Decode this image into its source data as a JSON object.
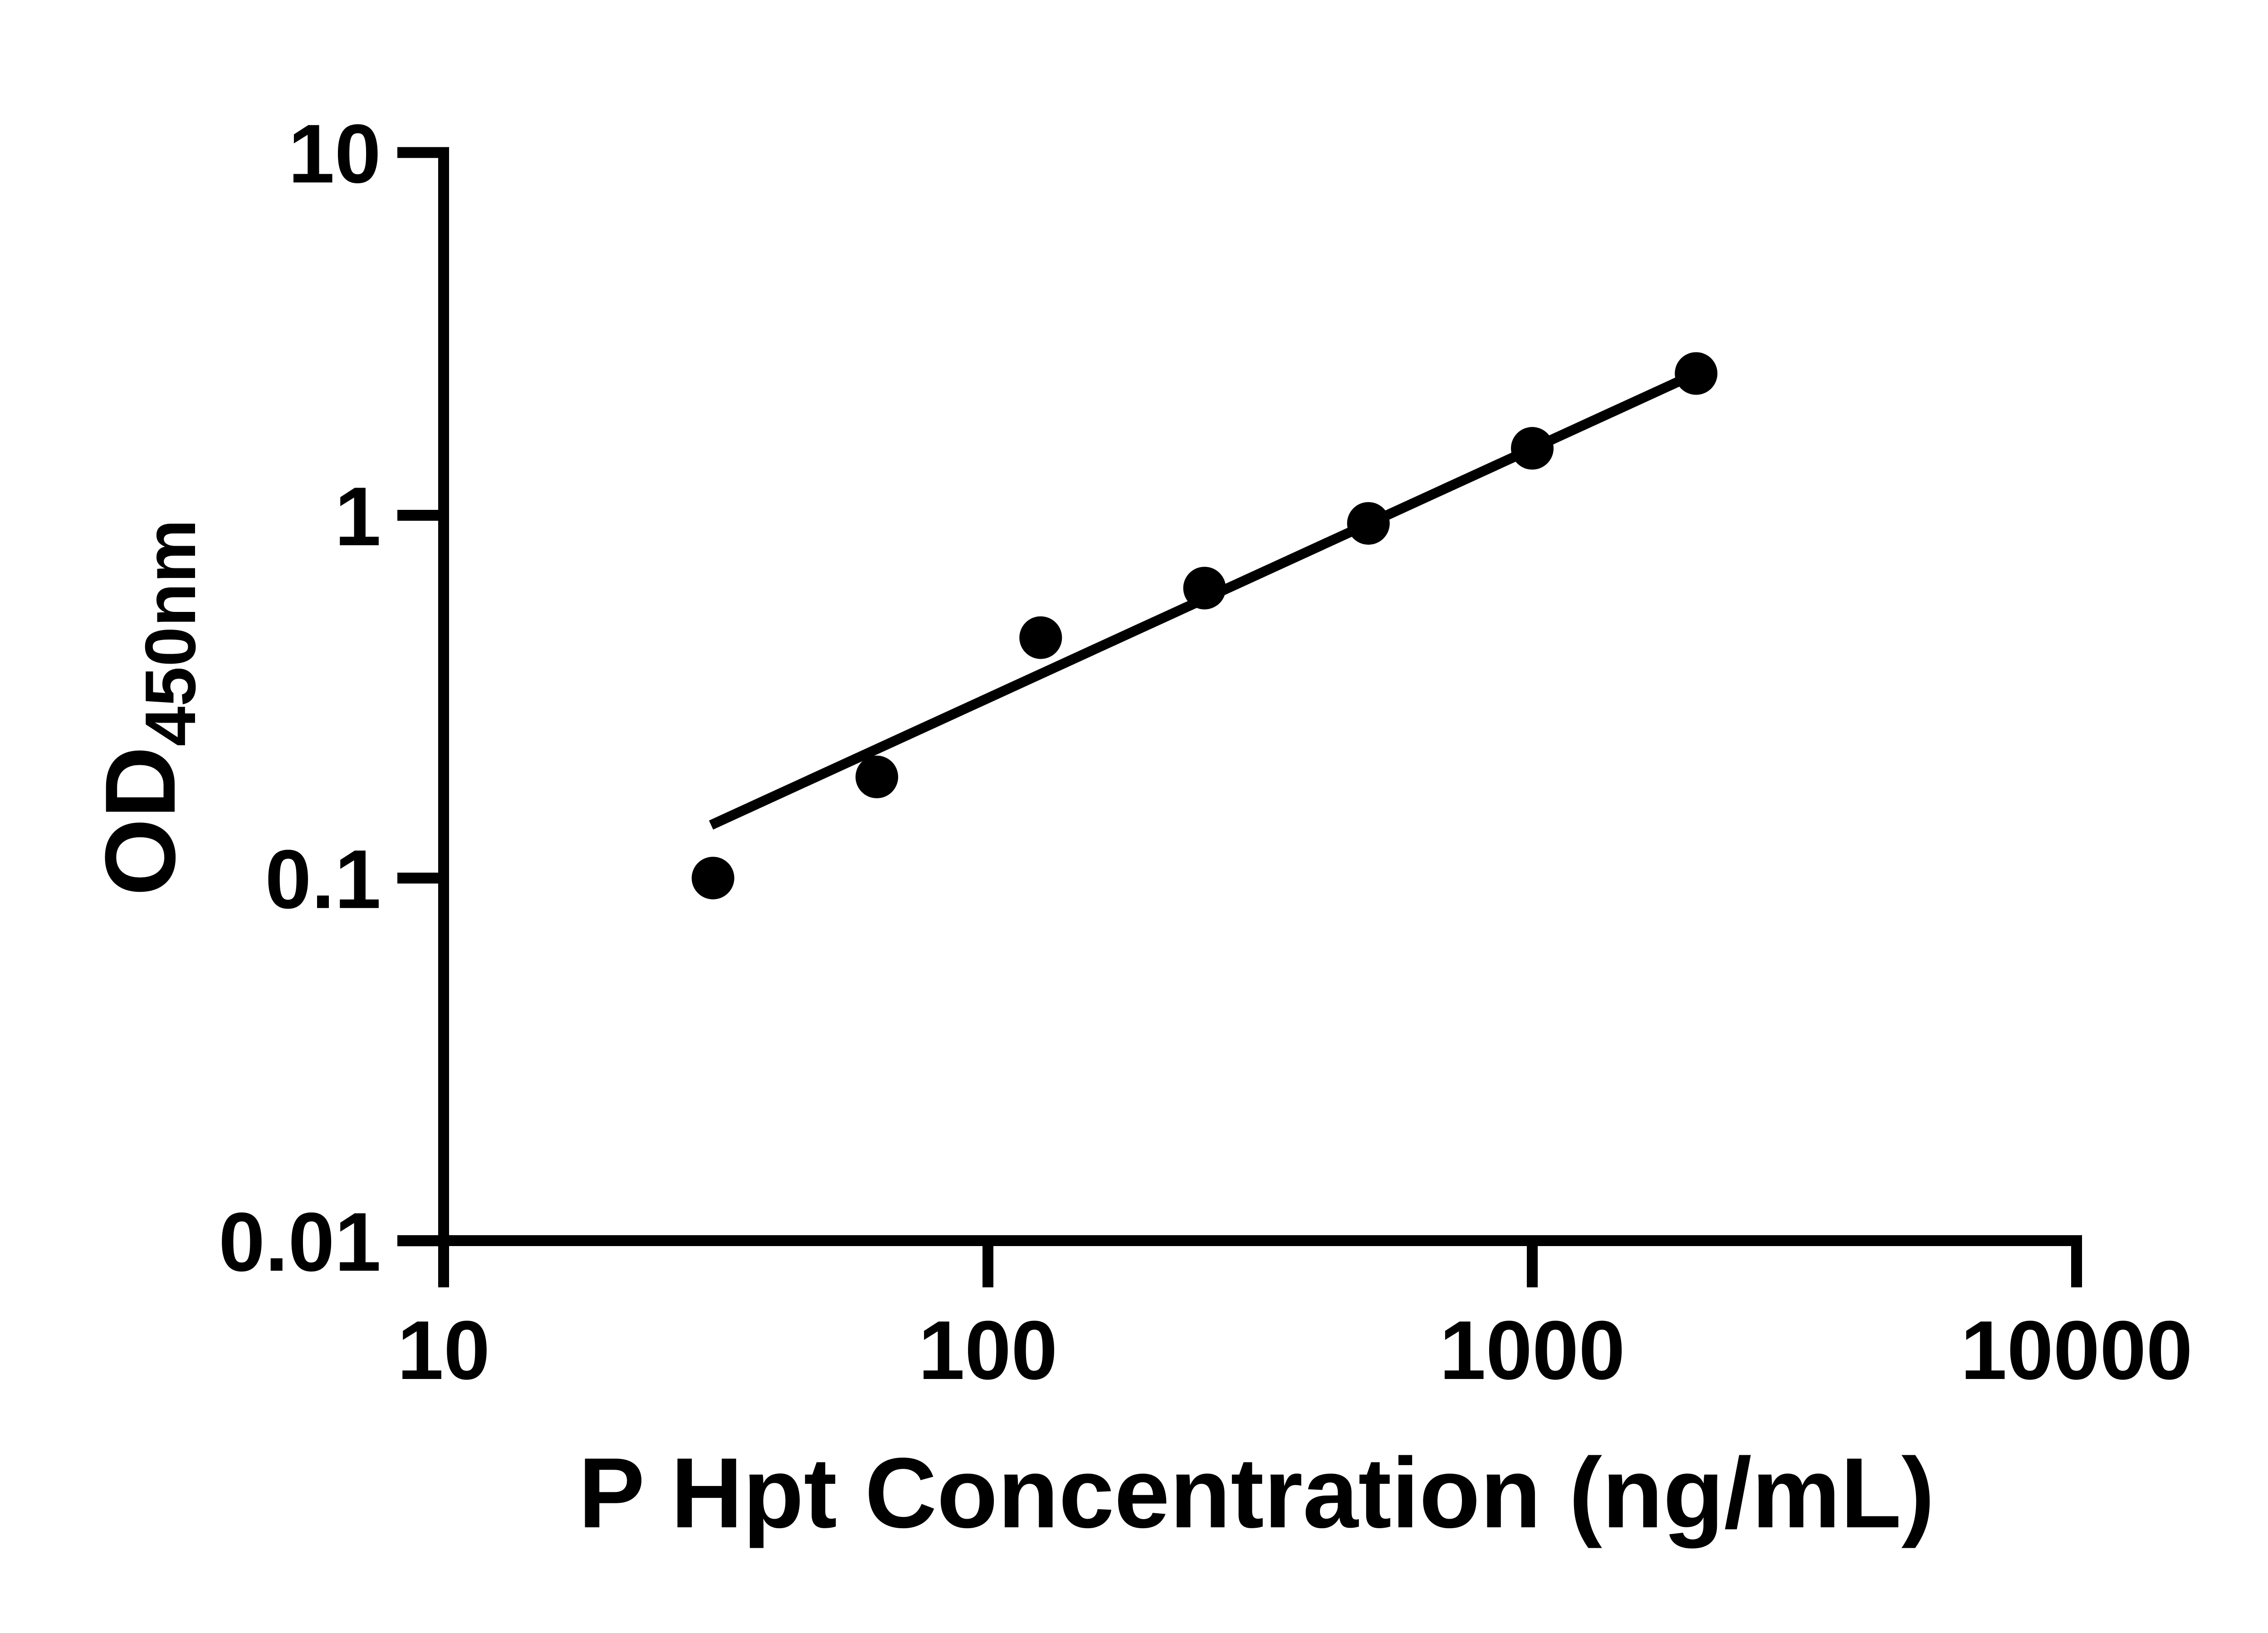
{
  "chart_data": {
    "type": "scatter",
    "title": "",
    "xlabel": "P Hpt Concentration (ng/mL)",
    "ylabel_main": "OD",
    "ylabel_sub": "450nm",
    "x_scale": "log",
    "y_scale": "log",
    "xlim": [
      10,
      10000
    ],
    "ylim": [
      0.01,
      10
    ],
    "grid": false,
    "legend": false,
    "background_color": "#ffffff",
    "ink_color": "#000000",
    "x_ticks": [
      {
        "value": 10,
        "label": "10"
      },
      {
        "value": 100,
        "label": "100"
      },
      {
        "value": 1000,
        "label": "1000"
      },
      {
        "value": 10000,
        "label": "10000"
      }
    ],
    "y_ticks": [
      {
        "value": 10,
        "label": "10"
      },
      {
        "value": 1,
        "label": "1"
      },
      {
        "value": 0.1,
        "label": "0.1"
      },
      {
        "value": 0.01,
        "label": "0.01"
      }
    ],
    "series": [
      {
        "name": "standard-curve-points",
        "marker": "filled-circle",
        "color": "#000000",
        "x": [
          31.25,
          62.5,
          125,
          250,
          500,
          1000,
          2000
        ],
        "y": [
          0.1,
          0.19,
          0.46,
          0.63,
          0.95,
          1.53,
          2.46
        ]
      }
    ],
    "trend_line": {
      "x_start": 31,
      "y_start": 0.14,
      "x_end": 2000,
      "y_end": 2.46,
      "color": "#000000"
    }
  }
}
